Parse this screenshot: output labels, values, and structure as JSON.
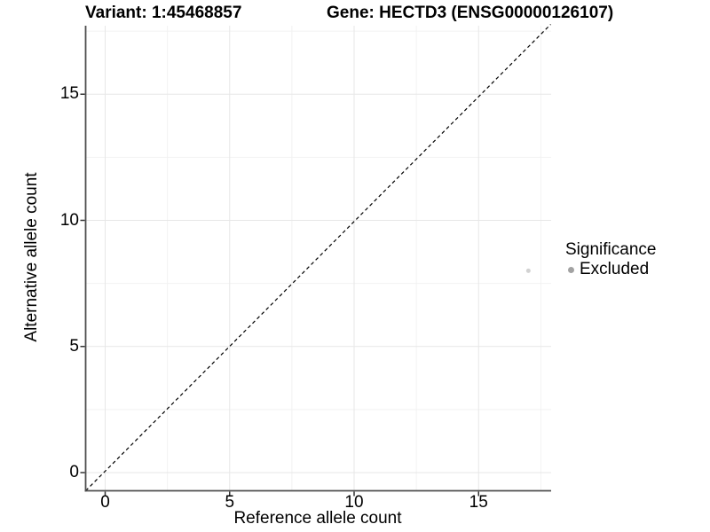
{
  "chart_data": {
    "type": "scatter",
    "titles": {
      "left": "Variant: 1:45468857",
      "right": "Gene: HECTD3 (ENSG00000126107)"
    },
    "xlabel": "Reference allele count",
    "ylabel": "Alternative allele count",
    "xlim": [
      -0.8,
      17.9
    ],
    "ylim": [
      -0.75,
      17.75
    ],
    "x_ticks": [
      0,
      5,
      10,
      15
    ],
    "y_ticks": [
      0,
      5,
      10,
      15
    ],
    "x_minor_gridlines": [
      2.5,
      7.5,
      12.5,
      17.5
    ],
    "y_minor_gridlines": [
      2.5,
      7.5,
      12.5,
      17.5
    ],
    "grid": "major+minor",
    "identity_line": {
      "type": "abline",
      "slope": 1,
      "intercept": 0,
      "style": "dashed",
      "color": "#000000"
    },
    "points": [
      {
        "x": 17,
        "y": 8,
        "series": "Excluded",
        "color": "#d2d2d2",
        "radius_px": 2.5
      }
    ],
    "legend": {
      "title": "Significance",
      "position": "right",
      "items": [
        {
          "label": "Excluded",
          "color": "#a2a2a2",
          "key_radius_px": 3.5
        }
      ]
    }
  },
  "colors": {
    "background": "#ffffff",
    "grid_major": "#e7e7e7",
    "grid_minor": "#f2f2f2",
    "axis_line": "#4f4f4f",
    "tick_mark": "#333333",
    "text": "#000000"
  }
}
